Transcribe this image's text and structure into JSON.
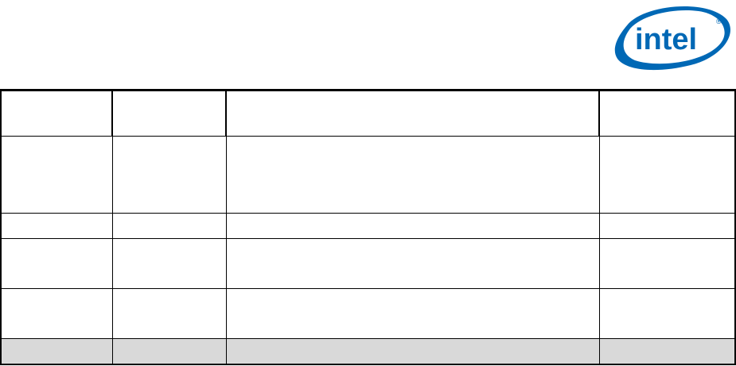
{
  "logo": {
    "text": "intel",
    "registered_mark": "®",
    "color": "#0068b5"
  },
  "table": {
    "columns": [
      "",
      "",
      "",
      ""
    ],
    "rows": [
      [
        "",
        "",
        "",
        ""
      ],
      [
        "",
        "",
        "",
        ""
      ],
      [
        "",
        "",
        "",
        ""
      ],
      [
        "",
        "",
        "",
        ""
      ],
      [
        "",
        "",
        "",
        ""
      ]
    ],
    "last_row_shading": "#d9d9d9"
  }
}
